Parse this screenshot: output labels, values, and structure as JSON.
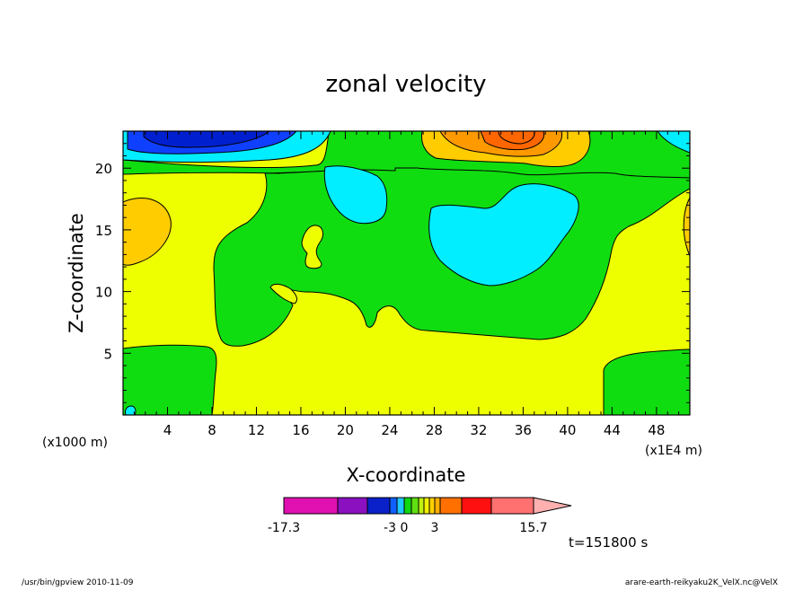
{
  "chart_data": {
    "type": "contour",
    "title": "zonal velocity",
    "xlabel": "X-coordinate",
    "ylabel": "Z-coordinate",
    "x_unit": "(x1E4 m)",
    "y_unit": "(x1000 m)",
    "xlim": [
      0,
      51
    ],
    "ylim": [
      0,
      23
    ],
    "x_ticks": [
      4,
      8,
      12,
      16,
      20,
      24,
      28,
      32,
      36,
      40,
      44,
      48
    ],
    "y_ticks": [
      5,
      10,
      15,
      20
    ],
    "colorbar": {
      "min": -17.3,
      "max": 15.7,
      "tick_labels": [
        "-17.3",
        "-3",
        "0",
        "3",
        "15.7"
      ],
      "colors": [
        "#e010b0",
        "#8a10c0",
        "#0a20c8",
        "#1060ff",
        "#20c8ff",
        "#10d810",
        "#60e010",
        "#c0f010",
        "#f0f000",
        "#ffd000",
        "#ffb000",
        "#ff7000",
        "#ff1010",
        "#ff7070"
      ],
      "extend_color": "#ffb0b0"
    },
    "annotation": "t=151800 s"
  },
  "footer": {
    "left": "/usr/bin/gpview  2010-11-09",
    "right": "arare-earth-reikyaku2K_VelX.nc@VelX"
  },
  "colors": {
    "yellow": "#eeff00",
    "green": "#10dd10",
    "cyan": "#00eeff",
    "orange_light": "#ffcc00",
    "orange": "#ff9900",
    "dark_orange": "#ff6600",
    "blue": "#1040ff",
    "dark_blue": "#0020d0"
  }
}
